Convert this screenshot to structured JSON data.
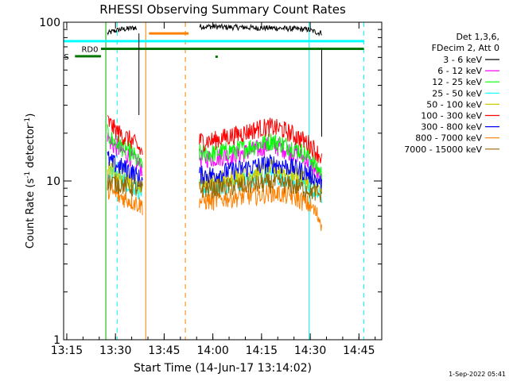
{
  "chart_data": {
    "type": "line",
    "title": "RHESSI Observing Summary Count Rates",
    "xlabel": "Start Time (14-Jun-17 13:14:02)",
    "ylabel_main": "Count Rate (s",
    "ylabel_sup1": "-1",
    "ylabel_mid": " detector",
    "ylabel_sup2": "-1",
    "ylabel_end": ")",
    "x_unit": "minutes since 13:14:02",
    "xlim": [
      0,
      98
    ],
    "ylim": [
      1,
      100
    ],
    "y_scale": "log",
    "x_ticks": [
      {
        "v": 0.97,
        "label": "13:15"
      },
      {
        "v": 15.97,
        "label": "13:30"
      },
      {
        "v": 30.97,
        "label": "13:45"
      },
      {
        "v": 45.97,
        "label": "14:00"
      },
      {
        "v": 60.97,
        "label": "14:15"
      },
      {
        "v": 75.97,
        "label": "14:30"
      },
      {
        "v": 90.97,
        "label": "14:45"
      }
    ],
    "y_ticks": [
      {
        "v": 1,
        "label": "1"
      },
      {
        "v": 10,
        "label": "10"
      },
      {
        "v": 100,
        "label": "100"
      }
    ],
    "legend_header": [
      "Det 1,3,6,",
      "FDecim 2, Att 0"
    ],
    "series": [
      {
        "name": "3 - 6 keV",
        "color": "#000000",
        "segments": [
          [
            [
              13.5,
              85
            ],
            [
              15.5,
              88
            ],
            [
              17.5,
              90
            ],
            [
              19.5,
              91
            ],
            [
              21.5,
              92
            ],
            [
              22.5,
              92
            ]
          ],
          [
            [
              41.8,
              94
            ],
            [
              46,
              94
            ],
            [
              50,
              93
            ],
            [
              55,
              93
            ],
            [
              60,
              92
            ],
            [
              65,
              92
            ],
            [
              70,
              91
            ],
            [
              75,
              90
            ],
            [
              78.5,
              86
            ],
            [
              79.5,
              86
            ]
          ]
        ]
      },
      {
        "name": "6 - 12 keV",
        "color": "#ff00ff",
        "segments": [
          [
            [
              13.5,
              19
            ],
            [
              15,
              17
            ],
            [
              17,
              16
            ],
            [
              19,
              15
            ],
            [
              21,
              14
            ],
            [
              24.3,
              12
            ]
          ],
          [
            [
              41.8,
              14
            ],
            [
              46,
              14
            ],
            [
              50,
              14.5
            ],
            [
              55,
              15
            ],
            [
              60,
              16
            ],
            [
              64,
              17
            ],
            [
              68,
              16
            ],
            [
              72,
              15
            ],
            [
              76,
              13
            ],
            [
              79.5,
              10
            ]
          ]
        ]
      },
      {
        "name": "12 - 25 keV",
        "color": "#00ff00",
        "segments": [
          [
            [
              13.5,
              20
            ],
            [
              15,
              18
            ],
            [
              17,
              17
            ],
            [
              19,
              16
            ],
            [
              21,
              15
            ],
            [
              24.3,
              12
            ]
          ],
          [
            [
              41.8,
              15
            ],
            [
              46,
              15
            ],
            [
              50,
              15.5
            ],
            [
              55,
              16
            ],
            [
              60,
              17
            ],
            [
              64,
              18
            ],
            [
              68,
              17
            ],
            [
              72,
              16
            ],
            [
              76,
              14
            ],
            [
              79.5,
              11
            ]
          ]
        ]
      },
      {
        "name": "25 - 50 keV",
        "color": "#00ffff",
        "segments": [
          [
            [
              13.5,
              11
            ],
            [
              15,
              11
            ],
            [
              17,
              10.5
            ],
            [
              19,
              10
            ],
            [
              21,
              9.5
            ],
            [
              24.3,
              8.5
            ]
          ],
          [
            [
              41.8,
              9
            ],
            [
              46,
              9
            ],
            [
              50,
              9.5
            ],
            [
              55,
              10
            ],
            [
              60,
              10.5
            ],
            [
              64,
              11
            ],
            [
              68,
              10.5
            ],
            [
              72,
              10
            ],
            [
              76,
              9
            ],
            [
              79.5,
              8
            ]
          ]
        ]
      },
      {
        "name": "50 - 100 keV",
        "color": "#cccc00",
        "segments": [
          [
            [
              13.5,
              12
            ],
            [
              15,
              11.5
            ],
            [
              17,
              11
            ],
            [
              19,
              10.5
            ],
            [
              21,
              10
            ],
            [
              24.3,
              9
            ]
          ],
          [
            [
              41.8,
              10
            ],
            [
              46,
              10
            ],
            [
              50,
              10.5
            ],
            [
              55,
              11
            ],
            [
              60,
              11.5
            ],
            [
              64,
              12
            ],
            [
              68,
              11.5
            ],
            [
              72,
              11
            ],
            [
              76,
              10
            ],
            [
              79.5,
              8.5
            ]
          ]
        ]
      },
      {
        "name": "100 - 300 keV",
        "color": "#ff0000",
        "segments": [
          [
            [
              13.5,
              24
            ],
            [
              15,
              22
            ],
            [
              17,
              20
            ],
            [
              19,
              19
            ],
            [
              21,
              18
            ],
            [
              24.3,
              15
            ]
          ],
          [
            [
              41.8,
              18
            ],
            [
              46,
              18
            ],
            [
              50,
              19
            ],
            [
              55,
              20
            ],
            [
              60,
              21.5
            ],
            [
              64,
              22
            ],
            [
              68,
              21
            ],
            [
              72,
              19
            ],
            [
              76,
              17
            ],
            [
              79.5,
              14
            ]
          ]
        ]
      },
      {
        "name": "300 - 800 keV",
        "color": "#0000ff",
        "segments": [
          [
            [
              13.5,
              14
            ],
            [
              15,
              13
            ],
            [
              17,
              12.5
            ],
            [
              19,
              12
            ],
            [
              21,
              11.5
            ],
            [
              24.3,
              10
            ]
          ],
          [
            [
              41.8,
              11
            ],
            [
              46,
              11
            ],
            [
              50,
              11.5
            ],
            [
              55,
              12
            ],
            [
              60,
              12.5
            ],
            [
              64,
              13
            ],
            [
              68,
              12.5
            ],
            [
              72,
              12
            ],
            [
              76,
              11
            ],
            [
              79.5,
              9.5
            ]
          ]
        ]
      },
      {
        "name": "800 - 7000 keV",
        "color": "#ff8000",
        "segments": [
          [
            [
              13.5,
              9
            ],
            [
              15,
              8.5
            ],
            [
              17,
              8
            ],
            [
              19,
              7.8
            ],
            [
              21,
              7.5
            ],
            [
              24.3,
              7
            ]
          ],
          [
            [
              41.8,
              7.5
            ],
            [
              46,
              7.5
            ],
            [
              50,
              7.8
            ],
            [
              55,
              8
            ],
            [
              60,
              8.2
            ],
            [
              64,
              8.5
            ],
            [
              68,
              8.2
            ],
            [
              72,
              7.8
            ],
            [
              76,
              7
            ],
            [
              79.5,
              5.5
            ]
          ]
        ]
      },
      {
        "name": "7000 - 15000 keV",
        "color": "#996600",
        "segments": [
          [
            [
              13.5,
              10
            ],
            [
              15,
              9.8
            ],
            [
              17,
              9.6
            ],
            [
              19,
              9.4
            ],
            [
              21,
              9.2
            ],
            [
              24.3,
              8.8
            ]
          ],
          [
            [
              41.8,
              9
            ],
            [
              46,
              9
            ],
            [
              50,
              9.2
            ],
            [
              55,
              9.4
            ],
            [
              60,
              9.6
            ],
            [
              64,
              9.8
            ],
            [
              68,
              9.6
            ],
            [
              72,
              9.2
            ],
            [
              76,
              8.8
            ],
            [
              79.5,
              8
            ]
          ]
        ]
      }
    ],
    "annotations": [
      {
        "label": "RD0",
        "color": "#007700"
      },
      {
        "label": "RDS",
        "color": "#007700"
      }
    ]
  },
  "footer_date": "1-Sep-2022 05:41"
}
